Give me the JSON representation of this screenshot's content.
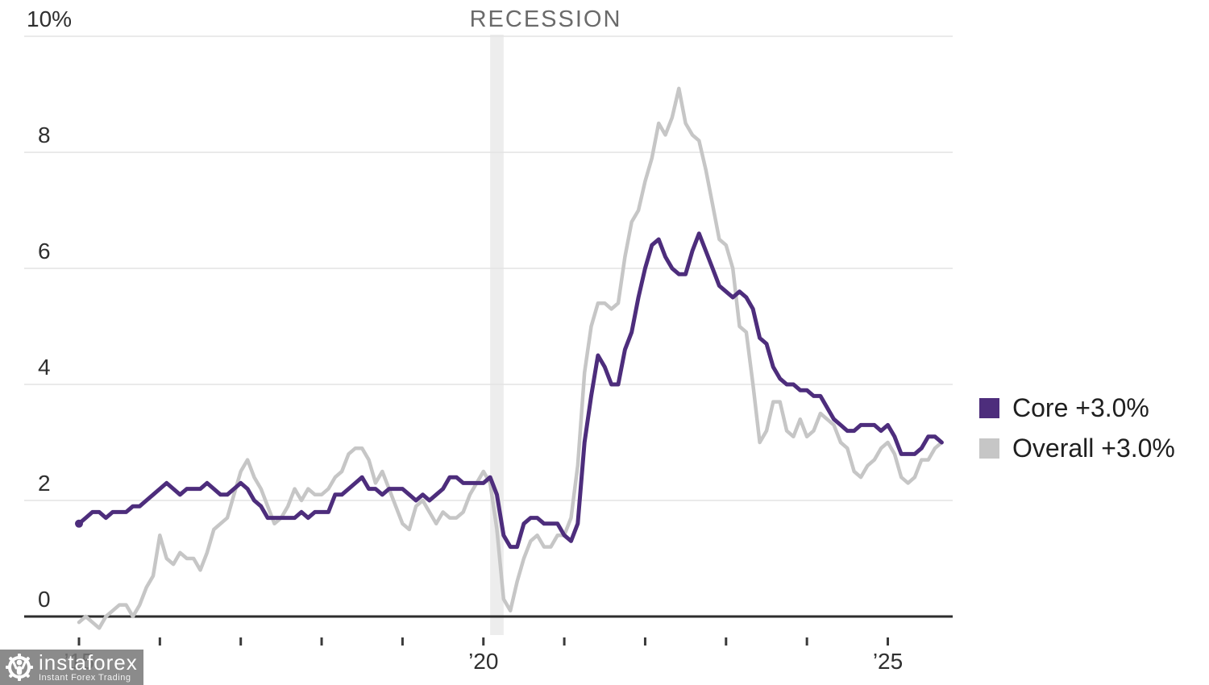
{
  "chart_data": {
    "type": "line",
    "title": "",
    "ylabel": "",
    "xlabel": "",
    "ylim": [
      -0.5,
      10
    ],
    "grid": true,
    "legend_position": "right",
    "y_axis": {
      "ticks": [
        {
          "value": 0,
          "label": "0"
        },
        {
          "value": 2,
          "label": "2"
        },
        {
          "value": 4,
          "label": "4"
        },
        {
          "value": 6,
          "label": "6"
        },
        {
          "value": 8,
          "label": "8"
        },
        {
          "value": 10,
          "label": "10%"
        }
      ]
    },
    "x_axis": {
      "start_month": "2015-01",
      "end_month": "2025-09",
      "ticks": [
        {
          "year": 2015,
          "label": "’15"
        },
        {
          "year": 2016
        },
        {
          "year": 2017
        },
        {
          "year": 2018
        },
        {
          "year": 2019
        },
        {
          "year": 2020,
          "label": "’20"
        },
        {
          "year": 2021
        },
        {
          "year": 2022
        },
        {
          "year": 2023
        },
        {
          "year": 2024
        },
        {
          "year": 2025,
          "label": "’25"
        }
      ]
    },
    "recession": {
      "label": "RECESSION",
      "start_month": "2020-02",
      "end_month": "2020-04"
    },
    "series": [
      {
        "name": "Core",
        "key": "core",
        "color": "#4d2d7c",
        "latest_label": "Core +3.0%",
        "values": [
          1.6,
          1.7,
          1.8,
          1.8,
          1.7,
          1.8,
          1.8,
          1.8,
          1.9,
          1.9,
          2.0,
          2.1,
          2.2,
          2.3,
          2.2,
          2.1,
          2.2,
          2.2,
          2.2,
          2.3,
          2.2,
          2.1,
          2.1,
          2.2,
          2.3,
          2.2,
          2.0,
          1.9,
          1.7,
          1.7,
          1.7,
          1.7,
          1.7,
          1.8,
          1.7,
          1.8,
          1.8,
          1.8,
          2.1,
          2.1,
          2.2,
          2.3,
          2.4,
          2.2,
          2.2,
          2.1,
          2.2,
          2.2,
          2.2,
          2.1,
          2.0,
          2.1,
          2.0,
          2.1,
          2.2,
          2.4,
          2.4,
          2.3,
          2.3,
          2.3,
          2.3,
          2.4,
          2.1,
          1.4,
          1.2,
          1.2,
          1.6,
          1.7,
          1.7,
          1.6,
          1.6,
          1.6,
          1.4,
          1.3,
          1.6,
          3.0,
          3.8,
          4.5,
          4.3,
          4.0,
          4.0,
          4.6,
          4.9,
          5.5,
          6.0,
          6.4,
          6.5,
          6.2,
          6.0,
          5.9,
          5.9,
          6.3,
          6.6,
          6.3,
          6.0,
          5.7,
          5.6,
          5.5,
          5.6,
          5.5,
          5.3,
          4.8,
          4.7,
          4.3,
          4.1,
          4.0,
          4.0,
          3.9,
          3.9,
          3.8,
          3.8,
          3.6,
          3.4,
          3.3,
          3.2,
          3.2,
          3.3,
          3.3,
          3.3,
          3.2,
          3.3,
          3.1,
          2.8,
          2.8,
          2.8,
          2.9,
          3.1,
          3.1,
          3.0
        ]
      },
      {
        "name": "Overall",
        "key": "overall",
        "color": "#c6c6c6",
        "latest_label": "Overall +3.0%",
        "values": [
          -0.1,
          0.0,
          -0.1,
          -0.2,
          0.0,
          0.1,
          0.2,
          0.2,
          0.0,
          0.2,
          0.5,
          0.7,
          1.4,
          1.0,
          0.9,
          1.1,
          1.0,
          1.0,
          0.8,
          1.1,
          1.5,
          1.6,
          1.7,
          2.1,
          2.5,
          2.7,
          2.4,
          2.2,
          1.9,
          1.6,
          1.7,
          1.9,
          2.2,
          2.0,
          2.2,
          2.1,
          2.1,
          2.2,
          2.4,
          2.5,
          2.8,
          2.9,
          2.9,
          2.7,
          2.3,
          2.5,
          2.2,
          1.9,
          1.6,
          1.5,
          1.9,
          2.0,
          1.8,
          1.6,
          1.8,
          1.7,
          1.7,
          1.8,
          2.1,
          2.3,
          2.5,
          2.3,
          1.5,
          0.3,
          0.1,
          0.6,
          1.0,
          1.3,
          1.4,
          1.2,
          1.2,
          1.4,
          1.4,
          1.7,
          2.6,
          4.2,
          5.0,
          5.4,
          5.4,
          5.3,
          5.4,
          6.2,
          6.8,
          7.0,
          7.5,
          7.9,
          8.5,
          8.3,
          8.6,
          9.1,
          8.5,
          8.3,
          8.2,
          7.7,
          7.1,
          6.5,
          6.4,
          6.0,
          5.0,
          4.9,
          4.0,
          3.0,
          3.2,
          3.7,
          3.7,
          3.2,
          3.1,
          3.4,
          3.1,
          3.2,
          3.5,
          3.4,
          3.3,
          3.0,
          2.9,
          2.5,
          2.4,
          2.6,
          2.7,
          2.9,
          3.0,
          2.8,
          2.4,
          2.3,
          2.4,
          2.7,
          2.7,
          2.9,
          3.0
        ]
      }
    ]
  },
  "legend": {
    "items": [
      {
        "label": "Core +3.0%",
        "color": "#4d2d7c"
      },
      {
        "label": "Overall +3.0%",
        "color": "#c6c6c6"
      }
    ]
  },
  "watermark": {
    "name": "instaforex",
    "tagline": "Instant Forex Trading"
  }
}
